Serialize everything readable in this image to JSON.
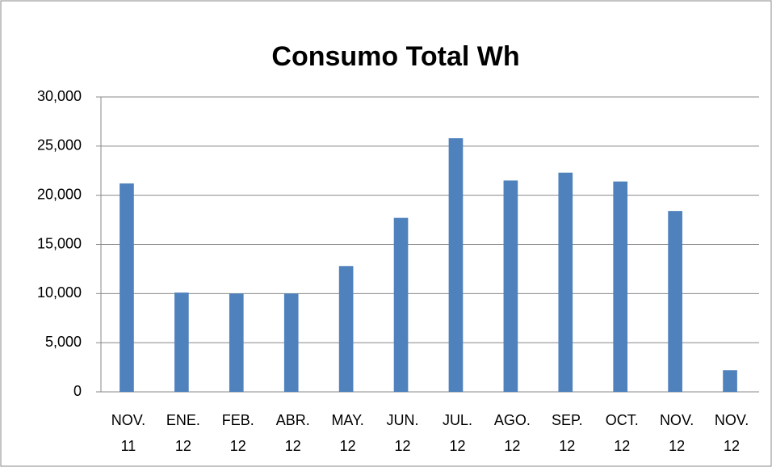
{
  "chart_data": {
    "type": "bar",
    "title": "Consumo Total Wh",
    "categories": [
      "NOV. 11",
      "ENE. 12",
      "FEB. 12",
      "ABR. 12",
      "MAY. 12",
      "JUN. 12",
      "JUL. 12",
      "AGO. 12",
      "SEP. 12",
      "OCT. 12",
      "NOV. 12",
      "NOV. 12"
    ],
    "values": [
      21200,
      10100,
      10000,
      10000,
      12800,
      17700,
      25800,
      21500,
      22300,
      21400,
      18400,
      2200
    ],
    "color": "#4f81bd",
    "ylim": [
      0,
      30000
    ],
    "yticks": [
      0,
      {
        "value": 5000,
        "label": "5,000"
      },
      {
        "value": 10000,
        "label": "10,000"
      },
      {
        "value": 15000,
        "label": "15,000"
      },
      {
        "value": 20000,
        "label": "20,000"
      },
      {
        "value": 25000,
        "label": "25,000"
      },
      {
        "value": 30000,
        "label": "30,000"
      }
    ],
    "grid": true
  }
}
